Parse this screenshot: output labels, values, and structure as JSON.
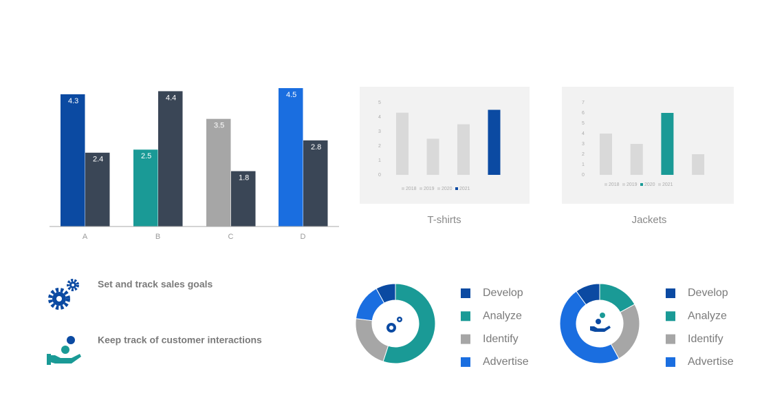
{
  "chart_data": [
    {
      "type": "bar",
      "categories": [
        "A",
        "B",
        "C",
        "D"
      ],
      "series": [
        {
          "values": [
            4.3,
            2.5,
            3.5,
            4.5
          ],
          "colors": [
            "#0b4aa2",
            "#1a9a96",
            "#a6a6a6",
            "#1a6ee0"
          ]
        },
        {
          "values": [
            2.4,
            4.4,
            1.8,
            2.8
          ],
          "color": "#3a4656"
        }
      ]
    },
    {
      "type": "bar",
      "title": "T-shirts",
      "categories": [
        "2018",
        "2019",
        "2020",
        "2021"
      ],
      "values": [
        4.3,
        2.5,
        3.5,
        4.5
      ],
      "colors": [
        "#d9d9d9",
        "#d9d9d9",
        "#d9d9d9",
        "#0b4aa2"
      ],
      "ylim": [
        0,
        5
      ],
      "yticks": [
        0,
        1,
        2,
        3,
        4,
        5
      ],
      "legend": "bottom"
    },
    {
      "type": "bar",
      "title": "Jackets",
      "categories": [
        "2018",
        "2019",
        "2020",
        "2021"
      ],
      "values": [
        4,
        3,
        6,
        2
      ],
      "colors": [
        "#d9d9d9",
        "#d9d9d9",
        "#1a9a96",
        "#d9d9d9"
      ],
      "ylim": [
        0,
        7
      ],
      "yticks": [
        0,
        1,
        2,
        3,
        4,
        5,
        6,
        7
      ],
      "legend": "bottom"
    },
    {
      "type": "pie",
      "categories": [
        "Develop",
        "Analyze",
        "Identify",
        "Advertise"
      ],
      "values": [
        8,
        55,
        22,
        15
      ],
      "colors": [
        "#0b4aa2",
        "#1a9a96",
        "#a6a6a6",
        "#1a6ee0"
      ],
      "legend": "right"
    },
    {
      "type": "pie",
      "categories": [
        "Develop",
        "Analyze",
        "Identify",
        "Advertise"
      ],
      "values": [
        10,
        17,
        25,
        48
      ],
      "colors": [
        "#0b4aa2",
        "#1a9a96",
        "#a6a6a6",
        "#1a6ee0"
      ],
      "legend": "right"
    }
  ],
  "features": [
    "Set and track sales goals",
    "Keep track of customer interactions"
  ]
}
